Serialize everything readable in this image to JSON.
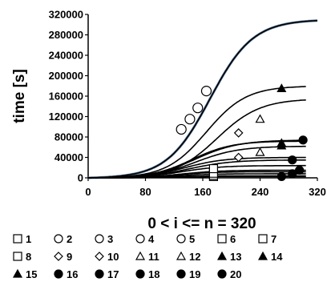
{
  "chart_data": {
    "type": "line",
    "title": "",
    "xlabel": "0 < i <= n = 320",
    "ylabel": "time [s]",
    "xlim": [
      0,
      320
    ],
    "ylim": [
      0,
      320000
    ],
    "xticks": [
      "0",
      "80",
      "160",
      "240",
      "320"
    ],
    "yticks": [
      "0",
      "40000",
      "80000",
      "120000",
      "160000",
      "200000",
      "240000",
      "280000",
      "320000"
    ],
    "grid": false,
    "legend_position": "bottom",
    "series": [
      {
        "name": "1",
        "marker": "square",
        "plateau": 4000,
        "x": [
          175
        ],
        "y": [
          2500
        ]
      },
      {
        "name": "2",
        "marker": "circle",
        "plateau": 310000,
        "x": [
          130
        ],
        "y": [
          95000
        ]
      },
      {
        "name": "3",
        "marker": "circle",
        "plateau": 310000,
        "x": [
          142
        ],
        "y": [
          115000
        ]
      },
      {
        "name": "4",
        "marker": "circle",
        "plateau": 310000,
        "x": [
          153
        ],
        "y": [
          137000
        ]
      },
      {
        "name": "5",
        "marker": "circle",
        "plateau": 310000,
        "x": [
          165
        ],
        "y": [
          170000
        ]
      },
      {
        "name": "6",
        "marker": "square",
        "plateau": 8000,
        "x": [
          175
        ],
        "y": [
          5000
        ]
      },
      {
        "name": "7",
        "marker": "square",
        "plateau": 12000,
        "x": [
          175
        ],
        "y": [
          9000
        ]
      },
      {
        "name": "8",
        "marker": "square",
        "plateau": 24000,
        "x": [
          175
        ],
        "y": [
          18000
        ]
      },
      {
        "name": "9",
        "marker": "diamond",
        "plateau": 40000,
        "x": [
          210
        ],
        "y": [
          40000
        ]
      },
      {
        "name": "10",
        "marker": "diamond",
        "plateau": 155000,
        "x": [
          210
        ],
        "y": [
          88000
        ]
      },
      {
        "name": "11",
        "marker": "triangle",
        "plateau": 62000,
        "x": [
          240
        ],
        "y": [
          50000
        ]
      },
      {
        "name": "12",
        "marker": "triangle",
        "plateau": 155000,
        "x": [
          240
        ],
        "y": [
          115000
        ]
      },
      {
        "name": "13",
        "marker": "triangle-filled",
        "plateau": 180000,
        "x": [
          270
        ],
        "y": [
          175000
        ]
      },
      {
        "name": "14",
        "marker": "triangle-filled",
        "plateau": 72000,
        "x": [
          270
        ],
        "y": [
          68000
        ]
      },
      {
        "name": "15",
        "marker": "triangle-filled",
        "plateau": 66000,
        "x": [
          270
        ],
        "y": [
          63000
        ]
      },
      {
        "name": "16",
        "marker": "circle-filled",
        "plateau": 2500,
        "x": [
          270
        ],
        "y": [
          2500
        ]
      },
      {
        "name": "17",
        "marker": "circle-filled",
        "plateau": 8000,
        "x": [
          285
        ],
        "y": [
          8000
        ]
      },
      {
        "name": "18",
        "marker": "circle-filled",
        "plateau": 15000,
        "x": [
          295
        ],
        "y": [
          15000
        ]
      },
      {
        "name": "19",
        "marker": "circle-filled",
        "plateau": 35000,
        "x": [
          285
        ],
        "y": [
          35000
        ]
      },
      {
        "name": "20",
        "marker": "circle-filled",
        "plateau": 74000,
        "x": [
          300
        ],
        "y": [
          74000
        ]
      }
    ],
    "curves": [
      {
        "plateau": 310000,
        "mid": 170,
        "width": 30,
        "x_end": 320,
        "color": "#5a7a9a"
      },
      {
        "plateau": 310000,
        "mid": 170,
        "width": 30,
        "x_end": 320,
        "color": "#000000"
      },
      {
        "plateau": 180000,
        "mid": 165,
        "width": 28,
        "x_end": 305,
        "color": "#000000"
      },
      {
        "plateau": 155000,
        "mid": 180,
        "width": 30,
        "x_end": 305,
        "color": "#000000"
      },
      {
        "plateau": 74000,
        "mid": 150,
        "width": 30,
        "x_end": 305,
        "color": "#000000"
      },
      {
        "plateau": 72000,
        "mid": 145,
        "width": 28,
        "x_end": 305,
        "color": "#000000"
      },
      {
        "plateau": 62000,
        "mid": 150,
        "width": 30,
        "x_end": 305,
        "color": "#000000"
      },
      {
        "plateau": 40000,
        "mid": 135,
        "width": 28,
        "x_end": 305,
        "color": "#000000"
      },
      {
        "plateau": 35000,
        "mid": 140,
        "width": 30,
        "x_end": 305,
        "color": "#000000"
      },
      {
        "plateau": 24000,
        "mid": 130,
        "width": 28,
        "x_end": 305,
        "color": "#000000"
      },
      {
        "plateau": 15000,
        "mid": 130,
        "width": 28,
        "x_end": 305,
        "color": "#000000"
      },
      {
        "plateau": 12000,
        "mid": 125,
        "width": 26,
        "x_end": 305,
        "color": "#000000"
      },
      {
        "plateau": 8000,
        "mid": 125,
        "width": 26,
        "x_end": 305,
        "color": "#000000"
      },
      {
        "plateau": 4000,
        "mid": 120,
        "width": 26,
        "x_end": 305,
        "color": "#000000"
      },
      {
        "plateau": 2500,
        "mid": 120,
        "width": 26,
        "x_end": 305,
        "color": "#000000"
      }
    ]
  }
}
